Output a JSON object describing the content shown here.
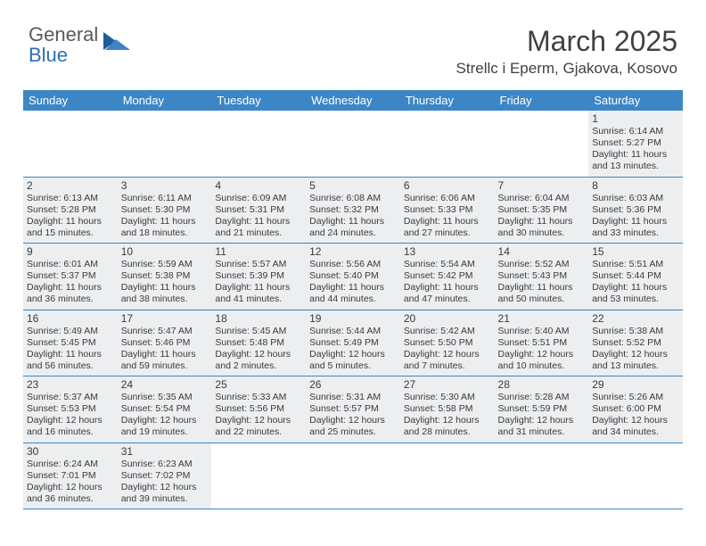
{
  "logo": {
    "part1": "General",
    "part2": "Blue"
  },
  "title": "March 2025",
  "location": "Strellc i Eperm, Gjakova, Kosovo",
  "header_bg": "#3d86c6",
  "days_of_week": [
    "Sunday",
    "Monday",
    "Tuesday",
    "Wednesday",
    "Thursday",
    "Friday",
    "Saturday"
  ],
  "weeks": [
    [
      null,
      null,
      null,
      null,
      null,
      null,
      {
        "n": "1",
        "sr": "Sunrise: 6:14 AM",
        "ss": "Sunset: 5:27 PM",
        "dl1": "Daylight: 11 hours",
        "dl2": "and 13 minutes."
      }
    ],
    [
      {
        "n": "2",
        "sr": "Sunrise: 6:13 AM",
        "ss": "Sunset: 5:28 PM",
        "dl1": "Daylight: 11 hours",
        "dl2": "and 15 minutes."
      },
      {
        "n": "3",
        "sr": "Sunrise: 6:11 AM",
        "ss": "Sunset: 5:30 PM",
        "dl1": "Daylight: 11 hours",
        "dl2": "and 18 minutes."
      },
      {
        "n": "4",
        "sr": "Sunrise: 6:09 AM",
        "ss": "Sunset: 5:31 PM",
        "dl1": "Daylight: 11 hours",
        "dl2": "and 21 minutes."
      },
      {
        "n": "5",
        "sr": "Sunrise: 6:08 AM",
        "ss": "Sunset: 5:32 PM",
        "dl1": "Daylight: 11 hours",
        "dl2": "and 24 minutes."
      },
      {
        "n": "6",
        "sr": "Sunrise: 6:06 AM",
        "ss": "Sunset: 5:33 PM",
        "dl1": "Daylight: 11 hours",
        "dl2": "and 27 minutes."
      },
      {
        "n": "7",
        "sr": "Sunrise: 6:04 AM",
        "ss": "Sunset: 5:35 PM",
        "dl1": "Daylight: 11 hours",
        "dl2": "and 30 minutes."
      },
      {
        "n": "8",
        "sr": "Sunrise: 6:03 AM",
        "ss": "Sunset: 5:36 PM",
        "dl1": "Daylight: 11 hours",
        "dl2": "and 33 minutes."
      }
    ],
    [
      {
        "n": "9",
        "sr": "Sunrise: 6:01 AM",
        "ss": "Sunset: 5:37 PM",
        "dl1": "Daylight: 11 hours",
        "dl2": "and 36 minutes."
      },
      {
        "n": "10",
        "sr": "Sunrise: 5:59 AM",
        "ss": "Sunset: 5:38 PM",
        "dl1": "Daylight: 11 hours",
        "dl2": "and 38 minutes."
      },
      {
        "n": "11",
        "sr": "Sunrise: 5:57 AM",
        "ss": "Sunset: 5:39 PM",
        "dl1": "Daylight: 11 hours",
        "dl2": "and 41 minutes."
      },
      {
        "n": "12",
        "sr": "Sunrise: 5:56 AM",
        "ss": "Sunset: 5:40 PM",
        "dl1": "Daylight: 11 hours",
        "dl2": "and 44 minutes."
      },
      {
        "n": "13",
        "sr": "Sunrise: 5:54 AM",
        "ss": "Sunset: 5:42 PM",
        "dl1": "Daylight: 11 hours",
        "dl2": "and 47 minutes."
      },
      {
        "n": "14",
        "sr": "Sunrise: 5:52 AM",
        "ss": "Sunset: 5:43 PM",
        "dl1": "Daylight: 11 hours",
        "dl2": "and 50 minutes."
      },
      {
        "n": "15",
        "sr": "Sunrise: 5:51 AM",
        "ss": "Sunset: 5:44 PM",
        "dl1": "Daylight: 11 hours",
        "dl2": "and 53 minutes."
      }
    ],
    [
      {
        "n": "16",
        "sr": "Sunrise: 5:49 AM",
        "ss": "Sunset: 5:45 PM",
        "dl1": "Daylight: 11 hours",
        "dl2": "and 56 minutes."
      },
      {
        "n": "17",
        "sr": "Sunrise: 5:47 AM",
        "ss": "Sunset: 5:46 PM",
        "dl1": "Daylight: 11 hours",
        "dl2": "and 59 minutes."
      },
      {
        "n": "18",
        "sr": "Sunrise: 5:45 AM",
        "ss": "Sunset: 5:48 PM",
        "dl1": "Daylight: 12 hours",
        "dl2": "and 2 minutes."
      },
      {
        "n": "19",
        "sr": "Sunrise: 5:44 AM",
        "ss": "Sunset: 5:49 PM",
        "dl1": "Daylight: 12 hours",
        "dl2": "and 5 minutes."
      },
      {
        "n": "20",
        "sr": "Sunrise: 5:42 AM",
        "ss": "Sunset: 5:50 PM",
        "dl1": "Daylight: 12 hours",
        "dl2": "and 7 minutes."
      },
      {
        "n": "21",
        "sr": "Sunrise: 5:40 AM",
        "ss": "Sunset: 5:51 PM",
        "dl1": "Daylight: 12 hours",
        "dl2": "and 10 minutes."
      },
      {
        "n": "22",
        "sr": "Sunrise: 5:38 AM",
        "ss": "Sunset: 5:52 PM",
        "dl1": "Daylight: 12 hours",
        "dl2": "and 13 minutes."
      }
    ],
    [
      {
        "n": "23",
        "sr": "Sunrise: 5:37 AM",
        "ss": "Sunset: 5:53 PM",
        "dl1": "Daylight: 12 hours",
        "dl2": "and 16 minutes."
      },
      {
        "n": "24",
        "sr": "Sunrise: 5:35 AM",
        "ss": "Sunset: 5:54 PM",
        "dl1": "Daylight: 12 hours",
        "dl2": "and 19 minutes."
      },
      {
        "n": "25",
        "sr": "Sunrise: 5:33 AM",
        "ss": "Sunset: 5:56 PM",
        "dl1": "Daylight: 12 hours",
        "dl2": "and 22 minutes."
      },
      {
        "n": "26",
        "sr": "Sunrise: 5:31 AM",
        "ss": "Sunset: 5:57 PM",
        "dl1": "Daylight: 12 hours",
        "dl2": "and 25 minutes."
      },
      {
        "n": "27",
        "sr": "Sunrise: 5:30 AM",
        "ss": "Sunset: 5:58 PM",
        "dl1": "Daylight: 12 hours",
        "dl2": "and 28 minutes."
      },
      {
        "n": "28",
        "sr": "Sunrise: 5:28 AM",
        "ss": "Sunset: 5:59 PM",
        "dl1": "Daylight: 12 hours",
        "dl2": "and 31 minutes."
      },
      {
        "n": "29",
        "sr": "Sunrise: 5:26 AM",
        "ss": "Sunset: 6:00 PM",
        "dl1": "Daylight: 12 hours",
        "dl2": "and 34 minutes."
      }
    ],
    [
      {
        "n": "30",
        "sr": "Sunrise: 6:24 AM",
        "ss": "Sunset: 7:01 PM",
        "dl1": "Daylight: 12 hours",
        "dl2": "and 36 minutes."
      },
      {
        "n": "31",
        "sr": "Sunrise: 6:23 AM",
        "ss": "Sunset: 7:02 PM",
        "dl1": "Daylight: 12 hours",
        "dl2": "and 39 minutes."
      },
      null,
      null,
      null,
      null,
      null
    ]
  ]
}
